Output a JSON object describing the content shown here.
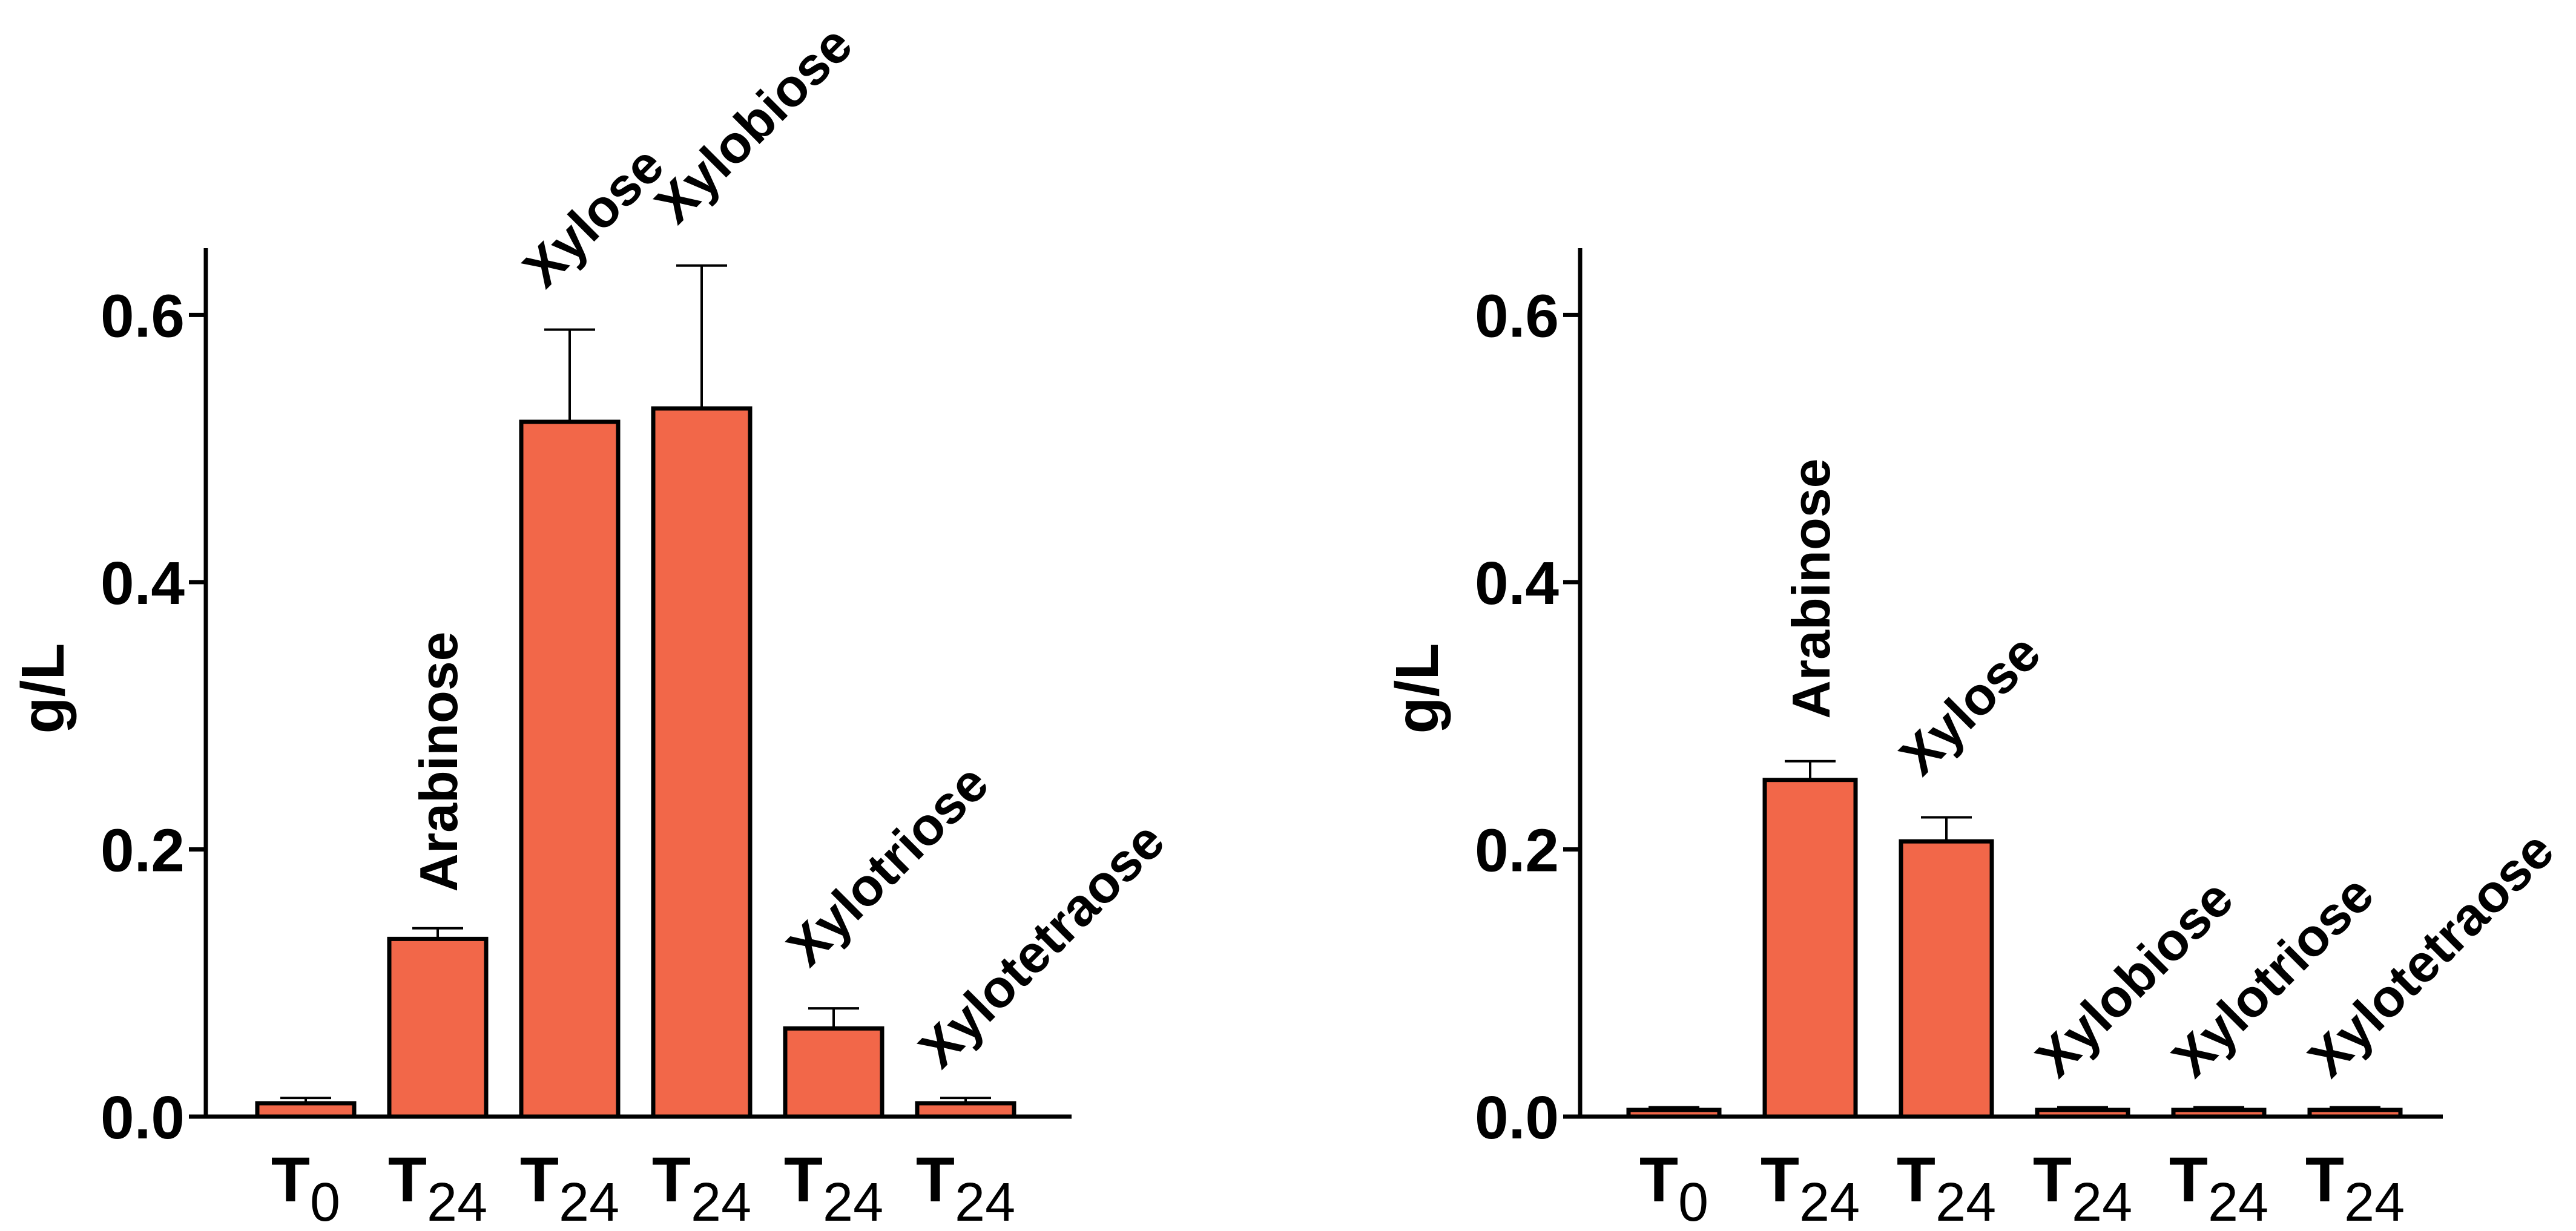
{
  "chart_data": [
    {
      "type": "bar",
      "title": "",
      "xlabel": "",
      "ylabel": "g/L",
      "ylim": [
        0,
        0.65
      ],
      "yticks": [
        "0.0",
        "0.2",
        "0.4",
        "0.6"
      ],
      "ytick_values": [
        0,
        0.2,
        0.4,
        0.6
      ],
      "bar_color": "#F26749",
      "categories": [
        {
          "main": "T",
          "sub": "0"
        },
        {
          "main": "T",
          "sub": "24"
        },
        {
          "main": "T",
          "sub": "24"
        },
        {
          "main": "T",
          "sub": "24"
        },
        {
          "main": "T",
          "sub": "24"
        },
        {
          "main": "T",
          "sub": "24"
        }
      ],
      "bar_labels": [
        "",
        "Arabinose",
        "Xylose",
        "Xylobiose",
        "Xylotriose",
        "Xylotetraose"
      ],
      "values": [
        0.01,
        0.133,
        0.52,
        0.53,
        0.066,
        0.01
      ],
      "errors": [
        0.004,
        0.008,
        0.069,
        0.107,
        0.015,
        0.004
      ]
    },
    {
      "type": "bar",
      "title": "",
      "xlabel": "",
      "ylabel": "g/L",
      "ylim": [
        0,
        0.65
      ],
      "yticks": [
        "0.0",
        "0.2",
        "0.4",
        "0.6"
      ],
      "ytick_values": [
        0,
        0.2,
        0.4,
        0.6
      ],
      "bar_color": "#F26749",
      "categories": [
        {
          "main": "T",
          "sub": "0"
        },
        {
          "main": "T",
          "sub": "24"
        },
        {
          "main": "T",
          "sub": "24"
        },
        {
          "main": "T",
          "sub": "24"
        },
        {
          "main": "T",
          "sub": "24"
        },
        {
          "main": "T",
          "sub": "24"
        }
      ],
      "bar_labels": [
        "",
        "Arabinose",
        "Xylose",
        "Xylobiose",
        "Xylotriose",
        "Xylotetraose"
      ],
      "values": [
        0.005,
        0.252,
        0.206,
        0.005,
        0.005,
        0.005
      ],
      "errors": [
        0.002,
        0.014,
        0.018,
        0.002,
        0.002,
        0.002
      ]
    }
  ]
}
